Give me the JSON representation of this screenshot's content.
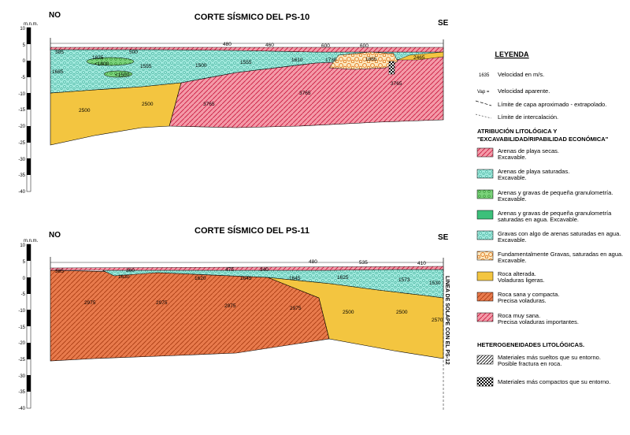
{
  "sections": [
    {
      "title": "CORTE SÍSMICO DEL PS-10",
      "left_dir": "NO",
      "right_dir": "SE",
      "axis_unit": "m.n.m.",
      "ticks": [
        "10",
        "5",
        "0",
        "-5",
        "-10",
        "-15",
        "-20",
        "-25",
        "-30",
        "-35",
        "-40"
      ],
      "velocities": [
        "480",
        "460",
        "600",
        "600",
        "500",
        "385",
        "1825",
        "<1800",
        "<1500",
        "1685",
        "1555",
        "1500",
        "1555",
        "1610",
        "1730",
        "1865",
        "2465",
        "3765",
        "2500",
        "2500",
        "3765",
        "3765"
      ]
    },
    {
      "title": "CORTE SÍSMICO DEL PS-11",
      "left_dir": "NO",
      "right_dir": "SE",
      "axis_unit": "m.n.m.",
      "ticks": [
        "10",
        "5",
        "0",
        "-5",
        "-10",
        "-15",
        "-20",
        "-25",
        "-30",
        "-35",
        "-40"
      ],
      "velocities": [
        "480",
        "535",
        "410",
        "385",
        "360",
        "475",
        "340",
        "1630",
        "1620",
        "1645",
        "1645",
        "1625",
        "1573",
        "1530",
        "2975",
        "2975",
        "2975",
        "2975",
        "2500",
        "2500",
        "2570"
      ],
      "overlap_label": "LINEA DE SOLAPE CON EL PS-12"
    }
  ],
  "legend": {
    "title": "LEYENDA",
    "symbols": [
      {
        "key": "1635",
        "text": "Velocidad en m/s."
      },
      {
        "key": "Vap =",
        "text": "Velocidad aparente."
      },
      {
        "key": "",
        "text": "Límite de capa aproximado - extrapolado."
      },
      {
        "key": "",
        "text": "Límite de intercalación."
      }
    ],
    "lithology_title": [
      "ATRIBUCIÓN LITOLÓGICA Y",
      "\"EXCAVABILIDAD/RIPABILIDAD ECONÓMICA\""
    ],
    "lithology": [
      {
        "line1": "Arenas de playa secas.",
        "line2": "Excavable.",
        "color": "#f3a0a0"
      },
      {
        "line1": "Arenas de playa saturadas.",
        "line2": "Excavable.",
        "color": "#a9ecec"
      },
      {
        "line1": "Arenas y gravas de pequeña granulometría.",
        "line2": "Excavable.",
        "color": "#8ed88e"
      },
      {
        "line1": "Arenas y gravas de pequeña granulometría",
        "line2": "saturadas en agua. Excavable.",
        "color": "#3cc07a"
      },
      {
        "line1": "Gravas con algo de arenas saturadas en agua.",
        "line2": "Excavable.",
        "color": "#5cd6c0"
      },
      {
        "line1": "Fundamentalmente Gravas, saturadas en agua.",
        "line2": "Excavable.",
        "color": "#f0a050"
      },
      {
        "line1": "Roca alterada.",
        "line2": "Voladuras ligeras.",
        "color": "#f2cc40"
      },
      {
        "line1": "Roca sana y compacta.",
        "line2": "Precisa voladuras.",
        "color": "#e07040"
      },
      {
        "line1": "Roca muy sana.",
        "line2": "Precisa voladuras importantes.",
        "color": "#e8506a"
      }
    ],
    "hetero_title": "HETEROGENEIDADES LITOLÓGICAS.",
    "hetero": [
      {
        "line1": "Materiales más sueltos que su entorno.",
        "line2": "Posible fractura en roca."
      },
      {
        "line1": "Materiales más compactos que su entorno.",
        "line2": ""
      }
    ]
  }
}
